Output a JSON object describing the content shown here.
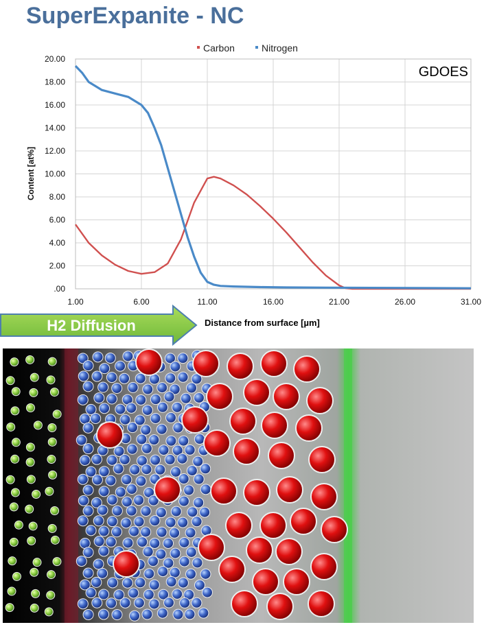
{
  "page": {
    "title": "SuperExpanite - NC"
  },
  "chart_data": {
    "type": "line",
    "annotation": "GDOES",
    "xlabel": "Distance from surface [µm]",
    "ylabel": "Content [at%]",
    "xlim": [
      1,
      31
    ],
    "ylim": [
      0,
      20
    ],
    "x_ticks": [
      "1.00",
      "6.00",
      "11.00",
      "16.00",
      "21.00",
      "26.00",
      "31.00"
    ],
    "y_ticks": [
      ".00",
      "2.00",
      "4.00",
      "6.00",
      "8.00",
      "10.00",
      "12.00",
      "14.00",
      "16.00",
      "18.00",
      "20.00"
    ],
    "grid": true,
    "legend_position": "top-center",
    "series": [
      {
        "name": "Carbon",
        "color": "#d0504f",
        "x": [
          1,
          2,
          3,
          4,
          5,
          6,
          7,
          8,
          9,
          10,
          11,
          11.5,
          12,
          13,
          14,
          15,
          16,
          17,
          18,
          19,
          20,
          21,
          21.5,
          22,
          25,
          31
        ],
        "y": [
          5.6,
          4.0,
          2.9,
          2.1,
          1.55,
          1.3,
          1.45,
          2.2,
          4.3,
          7.5,
          9.6,
          9.75,
          9.6,
          9.0,
          8.2,
          7.2,
          6.1,
          4.9,
          3.6,
          2.3,
          1.15,
          0.3,
          0.05,
          0.0,
          0.0,
          0.0
        ]
      },
      {
        "name": "Nitrogen",
        "color": "#4a8ac8",
        "x": [
          1,
          1.5,
          2,
          3,
          4,
          5,
          6,
          6.5,
          7,
          7.5,
          8,
          8.5,
          9,
          9.5,
          10,
          10.5,
          11,
          11.5,
          12,
          13,
          15,
          17,
          20,
          25,
          31
        ],
        "y": [
          19.4,
          18.8,
          18.0,
          17.3,
          17.0,
          16.7,
          16.0,
          15.3,
          14.0,
          12.5,
          10.5,
          8.5,
          6.5,
          4.5,
          2.8,
          1.4,
          0.6,
          0.35,
          0.25,
          0.2,
          0.15,
          0.12,
          0.1,
          0.08,
          0.05
        ]
      }
    ]
  },
  "diagram": {
    "arrow_label": "H2 Diffusion"
  }
}
